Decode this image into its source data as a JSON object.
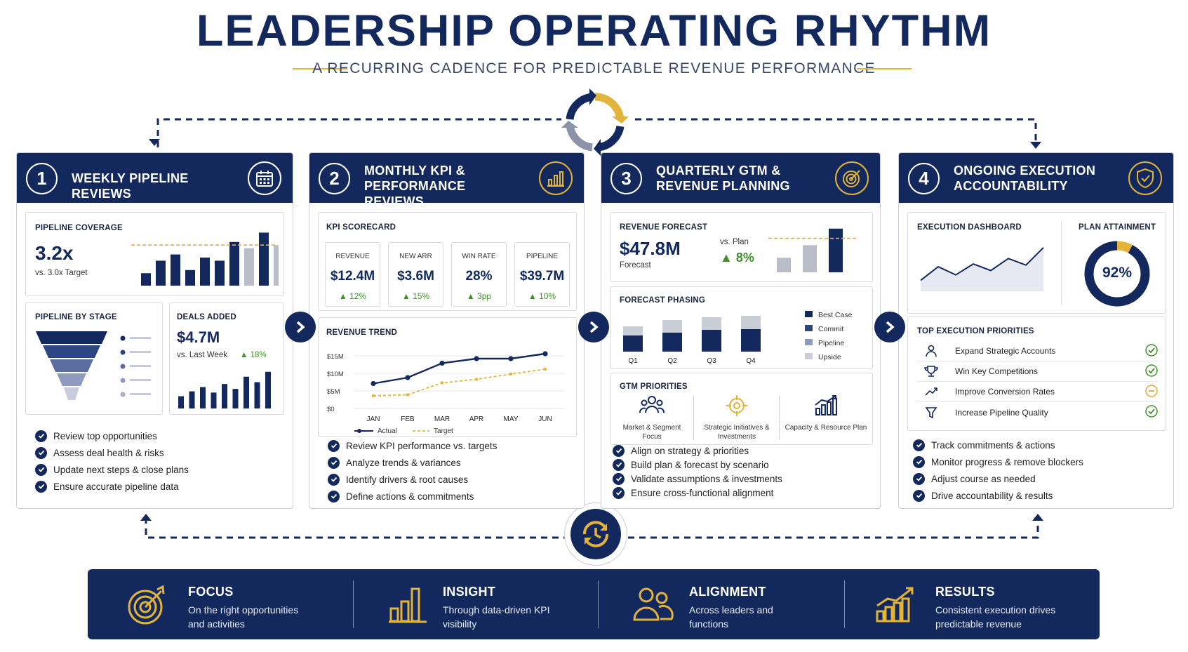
{
  "title": "LEADERSHIP OPERATING RHYTHM",
  "subtitle": "A RECURRING CADENCE FOR PREDICTABLE REVENUE PERFORMANCE",
  "colors": {
    "navy": "#13295d",
    "gold": "#e2b43a",
    "gray": "#8c93a8",
    "green": "#3f8f2d"
  },
  "panels": [
    {
      "num": "1",
      "title": "WEEKLY PIPELINE REVIEWS",
      "icon": "calendar-icon",
      "coverage": {
        "label": "PIPELINE COVERAGE",
        "value": "3.2x",
        "note": "vs. 3.0x Target"
      },
      "by_stage": {
        "label": "PIPELINE BY STAGE"
      },
      "deals": {
        "label": "DEALS ADDED",
        "value": "$4.7M",
        "note": "vs. Last Week",
        "delta": "▲ 18%"
      },
      "checks": [
        "Review top opportunities",
        "Assess deal health & risks",
        "Update next steps & close plans",
        "Ensure accurate pipeline data"
      ]
    },
    {
      "num": "2",
      "title": "MONTHLY KPI & PERFORMANCE REVIEWS",
      "icon": "bar-chart-icon",
      "scorecard_label": "KPI SCORECARD",
      "kpis": [
        {
          "label": "REVENUE",
          "value": "$12.4M",
          "delta": "▲ 12%"
        },
        {
          "label": "NEW ARR",
          "value": "$3.6M",
          "delta": "▲ 15%"
        },
        {
          "label": "WIN RATE",
          "value": "28%",
          "delta": "▲ 3pp"
        },
        {
          "label": "PIPELINE",
          "value": "$39.7M",
          "delta": "▲ 10%"
        }
      ],
      "trend_label": "REVENUE TREND",
      "checks": [
        "Review KPI performance vs. targets",
        "Analyze trends & variances",
        "Identify drivers & root causes",
        "Define actions & commitments"
      ]
    },
    {
      "num": "3",
      "title": "QUARTERLY GTM & REVENUE PLANNING",
      "icon": "target-icon",
      "forecast": {
        "label": "REVENUE FORECAST",
        "value": "$47.8M",
        "note": "Forecast",
        "vs": "vs. Plan",
        "delta": "▲ 8%"
      },
      "phasing_label": "FORECAST PHASING",
      "gtm_label": "GTM PRIORITIES",
      "gtm": [
        {
          "label": "Market & Segment Focus",
          "icon": "people-icon"
        },
        {
          "label": "Strategic Initiatives & Investments",
          "icon": "crosshair-icon"
        },
        {
          "label": "Capacity & Resource Plan",
          "icon": "growth-chart-icon"
        }
      ],
      "checks": [
        "Align on strategy & priorities",
        "Build plan & forecast by scenario",
        "Validate assumptions & investments",
        "Ensure cross-functional alignment"
      ]
    },
    {
      "num": "4",
      "title": "ONGOING EXECUTION ACCOUNTABILITY",
      "icon": "shield-check-icon",
      "dashboard_label": "EXECUTION DASHBOARD",
      "attainment": {
        "label": "PLAN ATTAINMENT",
        "value": "92%",
        "fraction": 0.92
      },
      "priorities_label": "TOP EXECUTION PRIORITIES",
      "priorities": [
        {
          "label": "Expand Strategic Accounts",
          "status": "done",
          "icon": "user-icon"
        },
        {
          "label": "Win Key Competitions",
          "status": "done",
          "icon": "trophy-icon"
        },
        {
          "label": "Improve Conversion Rates",
          "status": "in-progress",
          "icon": "trend-icon"
        },
        {
          "label": "Increase Pipeline Quality",
          "status": "done",
          "icon": "filter-icon"
        }
      ],
      "checks": [
        "Track commitments & actions",
        "Monitor progress & remove blockers",
        "Adjust course as needed",
        "Drive accountability & results"
      ]
    }
  ],
  "chart_data": [
    {
      "type": "bar",
      "title": "PIPELINE COVERAGE",
      "values": [
        2,
        4,
        5,
        2.5,
        4.5,
        4,
        7,
        6,
        8.5,
        6.5
      ],
      "target": 6.5,
      "note": "dark bars actual, gray bars projected"
    },
    {
      "type": "bar",
      "title": "DEALS ADDED",
      "values": [
        2,
        2.8,
        3.5,
        2.6,
        4,
        3.2,
        5.2,
        4.3,
        6
      ]
    },
    {
      "type": "funnel",
      "title": "PIPELINE BY STAGE",
      "stages": 5
    },
    {
      "type": "line",
      "title": "REVENUE TREND",
      "categories": [
        "JAN",
        "FEB",
        "MAR",
        "APR",
        "MAY",
        "JUN"
      ],
      "yticks": [
        "$15M",
        "$10M",
        "$5M",
        "$0"
      ],
      "ylim": [
        0,
        15
      ],
      "series": [
        {
          "name": "Actual",
          "values": [
            7.1,
            8.8,
            12.9,
            14.2,
            14.2,
            15.6
          ]
        },
        {
          "name": "Target",
          "values": [
            3.6,
            3.9,
            7.3,
            8.3,
            9.8,
            11.2
          ]
        }
      ]
    },
    {
      "type": "bar",
      "title": "REVENUE FORECAST",
      "values": [
        1.5,
        2.8,
        4.5
      ],
      "target": 3.5
    },
    {
      "type": "bar",
      "title": "FORECAST PHASING",
      "stacked": true,
      "categories": [
        "Q1",
        "Q2",
        "Q3",
        "Q4"
      ],
      "series": [
        {
          "name": "Best Case",
          "values": [
            2.3,
            2.7,
            3.1,
            3.2
          ]
        },
        {
          "name": "Commit",
          "values": [
            0,
            0,
            0,
            0
          ]
        },
        {
          "name": "Pipeline",
          "values": [
            0,
            0,
            0,
            0
          ]
        },
        {
          "name": "Upside",
          "values": [
            1.3,
            1.8,
            1.8,
            1.9
          ]
        }
      ]
    },
    {
      "type": "area",
      "title": "EXECUTION DASHBOARD",
      "values": [
        2,
        4.5,
        3,
        5,
        3.8,
        6,
        4.8,
        8
      ]
    }
  ],
  "bottom": [
    {
      "title": "FOCUS",
      "text1": "On the right opportunities",
      "text2": "and activities",
      "icon": "target-icon"
    },
    {
      "title": "INSIGHT",
      "text1": "Through data-driven KPI",
      "text2": "visibility",
      "icon": "bar-chart-icon"
    },
    {
      "title": "ALIGNMENT",
      "text1": "Across leaders and",
      "text2": "functions",
      "icon": "people-icon"
    },
    {
      "title": "RESULTS",
      "text1": "Consistent execution drives",
      "text2": "predictable revenue",
      "icon": "growth-chart-icon"
    }
  ]
}
